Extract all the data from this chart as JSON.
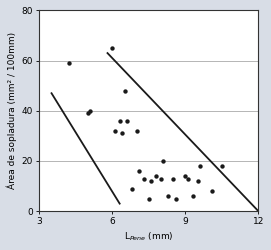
{
  "scatter_x": [
    4.2,
    5.0,
    5.1,
    6.0,
    6.1,
    6.3,
    6.4,
    6.5,
    6.6,
    6.8,
    7.0,
    7.1,
    7.3,
    7.5,
    7.6,
    7.8,
    8.0,
    8.1,
    8.3,
    8.5,
    8.6,
    9.0,
    9.1,
    9.3,
    9.5,
    9.6,
    10.1,
    10.5
  ],
  "scatter_y": [
    59,
    39,
    40,
    65,
    32,
    36,
    31,
    48,
    36,
    9,
    32,
    16,
    13,
    5,
    12,
    14,
    13,
    20,
    6,
    13,
    5,
    14,
    13,
    6,
    12,
    18,
    8,
    18
  ],
  "line1_x": [
    3.5,
    6.3
  ],
  "line1_y": [
    47,
    3
  ],
  "line2_x": [
    5.8,
    12.0
  ],
  "line2_y": [
    63,
    0
  ],
  "xlim": [
    3,
    12
  ],
  "ylim": [
    0,
    80
  ],
  "xticks": [
    3,
    6,
    9,
    12
  ],
  "yticks": [
    0,
    20,
    40,
    60,
    80
  ],
  "xlabel": "L$_{Pene}$ (mm)",
  "ylabel": "Área de sopladura (mm² / 100mm)",
  "dot_color": "#1a1a1a",
  "line_color": "#1a1a1a",
  "bg_color": "#d8dde6",
  "plot_bg": "#ffffff",
  "grid_color": "#aaaaaa",
  "tick_font_size": 6.5,
  "label_font_size": 6.5
}
